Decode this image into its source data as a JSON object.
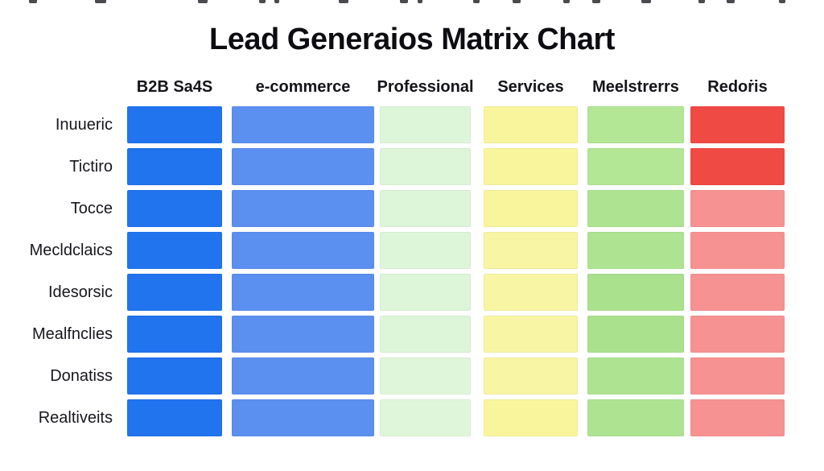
{
  "chart_data": {
    "type": "heatmap",
    "title": "Lead Generaios Matrix Chart",
    "columns": [
      "B2B Sa4S",
      "e-commerce",
      "Professional",
      "Services",
      "Meelstrerrs",
      "Redoṙis"
    ],
    "rows": [
      "Inuueric",
      "Tictiro",
      "Tocce",
      "Mecldclaics",
      "Idesorsic",
      "Mealfnclies",
      "Donatiss",
      "Realtiveits"
    ],
    "palette": {
      "strong_blue": "#2173ee",
      "medium_blue": "#5b90f0",
      "pale_green": "#ddf5d8",
      "pale_yellow": "#f8f59d",
      "light_green": "#aee392",
      "strong_red": "#f04a45",
      "light_red": "#f79292"
    },
    "cell_colors": [
      [
        "#2173ee",
        "#5b90f0",
        "#ddf5d8",
        "#f8f59d",
        "#b3e795",
        "#f04a45"
      ],
      [
        "#2173ee",
        "#5b90f0",
        "#ddf5d8",
        "#f8f59d",
        "#b3e795",
        "#f04a45"
      ],
      [
        "#2173ee",
        "#5b90f0",
        "#ddf5d8",
        "#f8f59d",
        "#aee392",
        "#f79292"
      ],
      [
        "#2173ee",
        "#5b90f0",
        "#ddf5d8",
        "#f8f5a4",
        "#aee392",
        "#f79292"
      ],
      [
        "#2173ee",
        "#5b90f0",
        "#ddf5d8",
        "#f8f5a4",
        "#a9e18d",
        "#f79292"
      ],
      [
        "#2173ee",
        "#5b90f0",
        "#ddf5d8",
        "#f8f5a4",
        "#a9e18d",
        "#f79292"
      ],
      [
        "#2173ee",
        "#5b90f0",
        "#e0f6da",
        "#f8f5a4",
        "#aee392",
        "#f79292"
      ],
      [
        "#2173ee",
        "#5b90f0",
        "#e0f6da",
        "#f8f59d",
        "#aee392",
        "#f79292"
      ]
    ],
    "grid_on": false,
    "legend": "none",
    "background": "#ffffff"
  }
}
